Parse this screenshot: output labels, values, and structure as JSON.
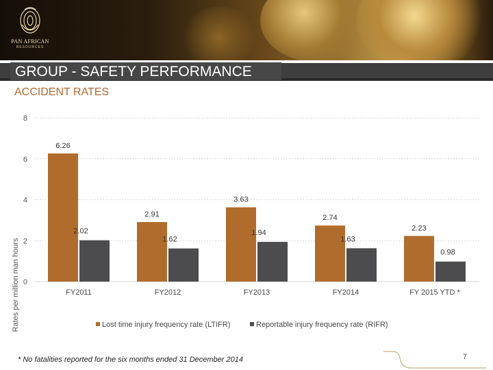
{
  "brand": {
    "name": "PAN AFRICAN",
    "sub": "RESOURCES"
  },
  "header": {
    "title": "GROUP - SAFETY PERFORMANCE",
    "section": "ACCIDENT RATES"
  },
  "chart_data": {
    "type": "bar",
    "categories": [
      "FY2011",
      "FY2012",
      "FY2013",
      "FY2014",
      "FY 2015 YTD *"
    ],
    "series": [
      {
        "name": "Lost time injury frequency rate (LTIFR)",
        "values": [
          6.26,
          2.91,
          3.63,
          2.74,
          2.23
        ],
        "color": "#b06c2c"
      },
      {
        "name": "Reportable injury frequency rate (RIFR)",
        "values": [
          2.02,
          1.62,
          1.94,
          1.63,
          0.98
        ],
        "color": "#4c4c4e"
      }
    ],
    "ylabel": "Rates per million man hours",
    "ylim": [
      0,
      8
    ],
    "yticks": [
      0,
      2,
      4,
      6,
      8
    ],
    "grid": true,
    "legend": "bottom"
  },
  "footer": {
    "note": "* No fatalities reported for the six months ended 31 December 2014",
    "page": "7"
  }
}
